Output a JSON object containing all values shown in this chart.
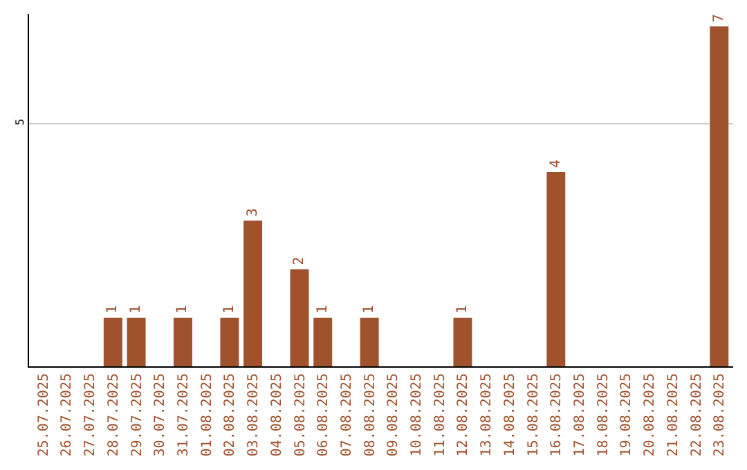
{
  "chart_data": {
    "type": "bar",
    "categories": [
      "25.07.2025",
      "26.07.2025",
      "27.07.2025",
      "28.07.2025",
      "29.07.2025",
      "30.07.2025",
      "31.07.2025",
      "01.08.2025",
      "02.08.2025",
      "03.08.2025",
      "04.08.2025",
      "05.08.2025",
      "06.08.2025",
      "07.08.2025",
      "08.08.2025",
      "09.08.2025",
      "10.08.2025",
      "11.08.2025",
      "12.08.2025",
      "13.08.2025",
      "14.08.2025",
      "15.08.2025",
      "16.08.2025",
      "17.08.2025",
      "18.08.2025",
      "19.08.2025",
      "20.08.2025",
      "21.08.2025",
      "22.08.2025",
      "23.08.2025"
    ],
    "values": [
      0,
      0,
      0,
      1,
      1,
      0,
      1,
      0,
      1,
      3,
      0,
      2,
      1,
      0,
      1,
      0,
      0,
      0,
      1,
      0,
      0,
      0,
      4,
      0,
      0,
      0,
      0,
      0,
      0,
      7
    ],
    "value_labels": [
      null,
      null,
      null,
      "1",
      "1",
      null,
      "1",
      null,
      "1",
      "3",
      null,
      "2",
      "1",
      null,
      "1",
      null,
      null,
      null,
      "1",
      null,
      null,
      null,
      "4",
      null,
      null,
      null,
      null,
      null,
      null,
      "7"
    ],
    "color": "#a0522d",
    "ylim": [
      0,
      7.26
    ],
    "yticks": [
      5
    ],
    "grid": "y",
    "legend": false
  }
}
